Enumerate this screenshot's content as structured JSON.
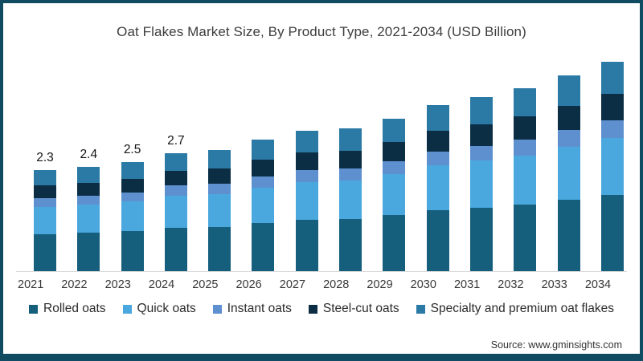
{
  "title": "Oat Flakes Market Size, By Product Type, 2021-2034 (USD Billion)",
  "source": "Source: www.gminsights.com",
  "frame": {
    "border_color": "#114B61",
    "background": "#ffffff"
  },
  "chart_data": {
    "type": "bar",
    "stacked": true,
    "title": "Oat Flakes Market Size, By Product Type, 2021-2034 (USD Billion)",
    "xlabel": "",
    "ylabel": "",
    "ylim": [
      0,
      5
    ],
    "grid": false,
    "legend_position": "bottom",
    "axis_line_color": "#d9d9d9",
    "categories": [
      "2021",
      "2022",
      "2023",
      "2024",
      "2025",
      "2026",
      "2027",
      "2028",
      "2029",
      "2030",
      "2031",
      "2032",
      "2033",
      "2034"
    ],
    "series": [
      {
        "name": "Rolled oats",
        "color": "#155E7C",
        "values": [
          0.84,
          0.88,
          0.91,
          0.99,
          1.02,
          1.1,
          1.17,
          1.2,
          1.28,
          1.39,
          1.46,
          1.53,
          1.64,
          1.75
        ]
      },
      {
        "name": "Quick oats",
        "color": "#4AA8DE",
        "values": [
          0.62,
          0.65,
          0.68,
          0.73,
          0.76,
          0.81,
          0.86,
          0.89,
          0.94,
          1.03,
          1.08,
          1.13,
          1.22,
          1.3
        ]
      },
      {
        "name": "Instant oats",
        "color": "#5E90D0",
        "values": [
          0.2,
          0.2,
          0.21,
          0.23,
          0.24,
          0.25,
          0.27,
          0.28,
          0.3,
          0.32,
          0.34,
          0.36,
          0.38,
          0.41
        ]
      },
      {
        "name": "Steel-cut oats",
        "color": "#0C2E44",
        "values": [
          0.29,
          0.3,
          0.31,
          0.34,
          0.35,
          0.38,
          0.4,
          0.41,
          0.44,
          0.48,
          0.5,
          0.53,
          0.56,
          0.6
        ]
      },
      {
        "name": "Specialty and premium oat flakes",
        "color": "#2B7AA5",
        "values": [
          0.35,
          0.37,
          0.39,
          0.41,
          0.43,
          0.46,
          0.5,
          0.52,
          0.54,
          0.58,
          0.62,
          0.65,
          0.7,
          0.74
        ]
      }
    ],
    "totals": [
      2.3,
      2.4,
      2.5,
      2.7,
      2.8,
      3.0,
      3.2,
      3.3,
      3.5,
      3.8,
      4.0,
      4.2,
      4.5,
      4.8
    ],
    "bar_value_labels": [
      "2.3",
      "2.4",
      "2.5",
      "2.7",
      "",
      "",
      "",
      "",
      "",
      "",
      "",
      "",
      "",
      ""
    ]
  }
}
